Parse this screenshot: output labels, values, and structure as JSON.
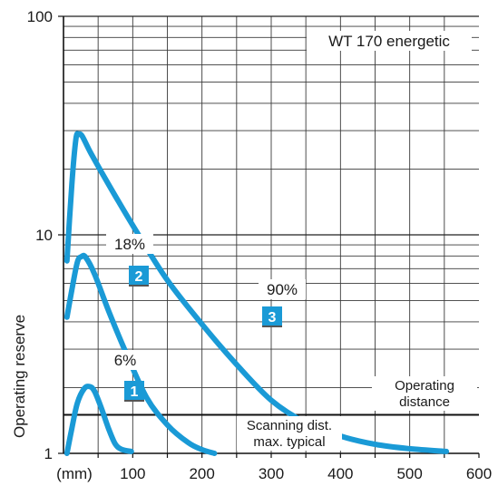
{
  "chart_data": {
    "type": "line",
    "title": "WT 170 energetic",
    "ylabel": "Operating reserve",
    "x_unit_label": "(mm)",
    "xlim": [
      0,
      600
    ],
    "ylim": [
      1,
      100
    ],
    "y_scale": "log",
    "grid": true,
    "x_ticks": [
      "100",
      "200",
      "300",
      "400",
      "500",
      "600"
    ],
    "y_ticks": [
      "1",
      "10",
      "100"
    ],
    "accent_color": "#1a9ad6",
    "series": [
      {
        "name": "6%",
        "badge": "1",
        "points": [
          [
            5,
            1.0
          ],
          [
            12,
            1.3
          ],
          [
            20,
            1.7
          ],
          [
            30,
            1.98
          ],
          [
            38,
            2.02
          ],
          [
            45,
            1.92
          ],
          [
            55,
            1.6
          ],
          [
            65,
            1.3
          ],
          [
            75,
            1.1
          ],
          [
            85,
            1.04
          ],
          [
            98,
            1.02
          ]
        ]
      },
      {
        "name": "18%",
        "badge": "2",
        "points": [
          [
            5,
            4.2
          ],
          [
            12,
            5.6
          ],
          [
            20,
            7.5
          ],
          [
            26,
            7.95
          ],
          [
            32,
            7.9
          ],
          [
            45,
            6.6
          ],
          [
            65,
            4.5
          ],
          [
            90,
            2.9
          ],
          [
            120,
            1.8
          ],
          [
            150,
            1.35
          ],
          [
            180,
            1.12
          ],
          [
            200,
            1.04
          ],
          [
            218,
            1.0
          ]
        ]
      },
      {
        "name": "90%",
        "badge": "3",
        "points": [
          [
            5,
            7.6
          ],
          [
            12,
            17
          ],
          [
            18,
            27.5
          ],
          [
            22,
            28.8
          ],
          [
            27,
            28.3
          ],
          [
            40,
            23.5
          ],
          [
            70,
            16
          ],
          [
            110,
            9.8
          ],
          [
            150,
            6.2
          ],
          [
            200,
            3.9
          ],
          [
            250,
            2.55
          ],
          [
            300,
            1.75
          ],
          [
            350,
            1.38
          ],
          [
            400,
            1.2
          ],
          [
            450,
            1.1
          ],
          [
            500,
            1.05
          ],
          [
            553,
            1.02
          ]
        ]
      }
    ],
    "annotations": {
      "operating_distance": "Operating\ndistance",
      "scanning_distance": "Scanning dist.\nmax. typical"
    },
    "reference_line_y": 1.5
  }
}
